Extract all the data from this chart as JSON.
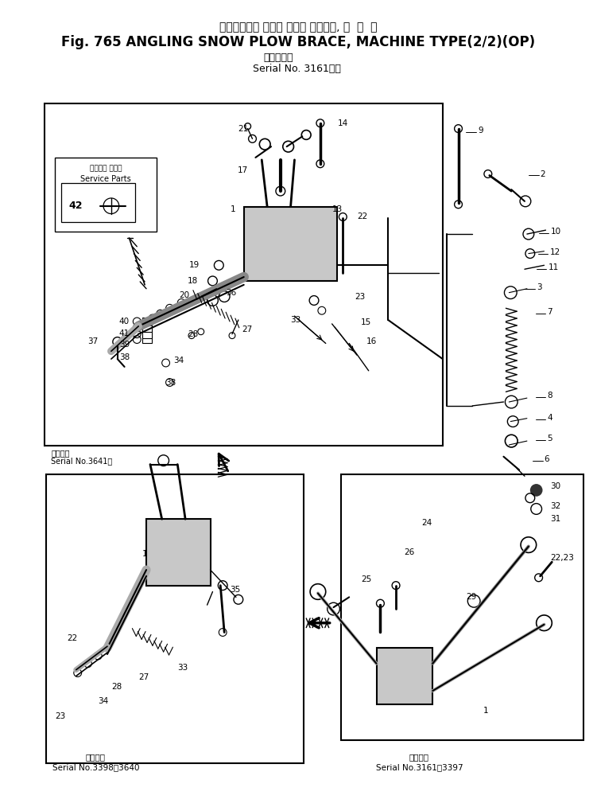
{
  "title_jp": "アングリング スノー プラウ ブレース, 機  械  式",
  "title_en": "Fig. 765 ANGLING SNOW PLOW BRACE, MACHINE TYPE(2/2)(OP)",
  "serial_jp": "（適用号機",
  "serial_en": "Serial No. 3161～）",
  "main_serial_jp": "適用号機",
  "main_serial_en": "Serial No.3641～",
  "bl_serial_jp": "適用号機",
  "bl_serial_en": "Serial No.3398～3640",
  "br_serial_jp": "適用号機",
  "br_serial_en": "Serial No.3161～3397",
  "sp_jp": "サービス パーツ",
  "sp_en": "Service Parts",
  "bg": "#ffffff",
  "lc": "#1a1a1a",
  "gray": "#c8c8c8"
}
